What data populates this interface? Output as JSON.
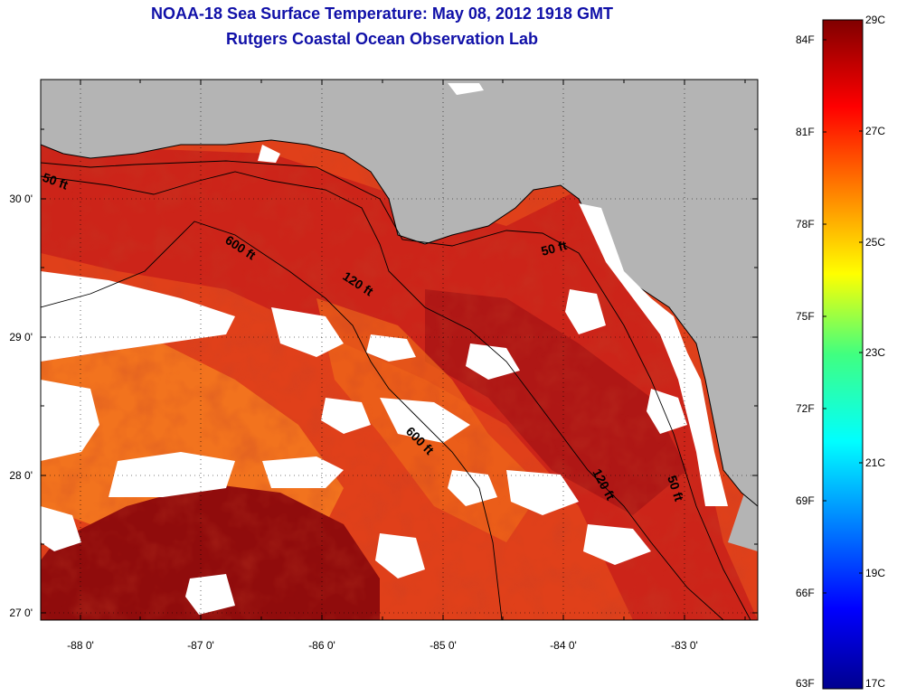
{
  "title": {
    "line1": "NOAA-18 Sea Surface Temperature:  May 08, 2012 1918 GMT",
    "line2": "Rutgers Coastal Ocean Observation Lab"
  },
  "map": {
    "longitude_labels": [
      "-88 0'",
      "-87 0'",
      "-86 0'",
      "-85 0'",
      "-84 0'",
      "-83 0'"
    ],
    "latitude_labels": [
      "30 0'",
      "29 0'",
      "28 0'",
      "27 0'"
    ],
    "longitude_range": [
      -88.3,
      -82.5
    ],
    "latitude_range": [
      26.97,
      30.85
    ],
    "contour_labels": [
      "50 ft",
      "600 ft",
      "120 ft",
      "50 ft",
      "600 ft",
      "120 ft",
      "50 ft"
    ],
    "colors": {
      "land": "#b4b4b4",
      "cloud_mask": "#ffffff",
      "sst_warm": "#c81e14",
      "sst_hot": "#8c0a0a",
      "sst_mild": "#f06414"
    }
  },
  "colorbar": {
    "fahrenheit_labels": [
      "84F",
      "81F",
      "78F",
      "75F",
      "72F",
      "69F",
      "66F",
      "63F"
    ],
    "celsius_labels": [
      "29C",
      "27C",
      "25C",
      "23C",
      "21C",
      "19C",
      "17C"
    ],
    "range_celsius": [
      17,
      29
    ],
    "colormap": "jet"
  }
}
